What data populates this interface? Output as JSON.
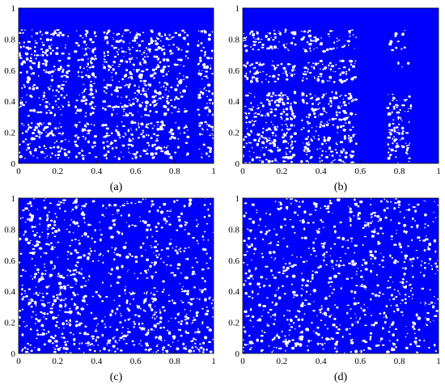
{
  "chart_data": [
    {
      "type": "scatter",
      "caption": "(a)",
      "xlim": [
        0,
        1
      ],
      "ylim": [
        0,
        1
      ],
      "xticks": [
        "0",
        "0.2",
        "0.4",
        "0.6",
        "0.8",
        "1"
      ],
      "yticks": [
        "0",
        "0.2",
        "0.4",
        "0.6",
        "0.8",
        "1"
      ],
      "point_color": "#0000ff",
      "background_color": "#ffffff",
      "grid": false,
      "density_description_values": {
        "dense_columns_x": [
          [
            0.26,
            0.29
          ],
          [
            0.87,
            0.92
          ],
          [
            0.4,
            0.43
          ]
        ],
        "dense_rows_y": [
          [
            0.86,
            1.0
          ],
          [
            0.27,
            0.3
          ],
          [
            0.0,
            0.03
          ]
        ]
      }
    },
    {
      "type": "scatter",
      "caption": "(b)",
      "xlim": [
        0,
        1
      ],
      "ylim": [
        0,
        1
      ],
      "xticks": [
        "0",
        "0.2",
        "0.4",
        "0.6",
        "0.8",
        "1"
      ],
      "yticks": [
        "0",
        "0.2",
        "0.4",
        "0.6",
        "0.8",
        "1"
      ],
      "point_color": "#0000ff",
      "background_color": "#ffffff",
      "grid": false,
      "density_description_values": {
        "dense_columns_x": [
          [
            0.58,
            0.74
          ],
          [
            0.86,
            1.0
          ],
          [
            0.27,
            0.3
          ]
        ],
        "dense_rows_y": [
          [
            0.86,
            1.0
          ],
          [
            0.66,
            0.72
          ],
          [
            0.46,
            0.52
          ]
        ]
      }
    },
    {
      "type": "scatter",
      "caption": "(c)",
      "xlim": [
        0,
        1
      ],
      "ylim": [
        0,
        1
      ],
      "xticks": [
        "0",
        "0.2",
        "0.4",
        "0.6",
        "0.8",
        "1"
      ],
      "yticks": [
        "0",
        "0.2",
        "0.4",
        "0.6",
        "0.8",
        "1"
      ],
      "point_color": "#0000ff",
      "background_color": "#ffffff",
      "grid": false,
      "density_description_values": {
        "dense_columns_x": [
          [
            0.35,
            1.0
          ]
        ],
        "dense_rows_y": [
          [
            0.4,
            1.0
          ]
        ]
      }
    },
    {
      "type": "scatter",
      "caption": "(d)",
      "xlim": [
        0,
        1
      ],
      "ylim": [
        0,
        1
      ],
      "xticks": [
        "0",
        "0.2",
        "0.4",
        "0.6",
        "0.8",
        "1"
      ],
      "yticks": [
        "0",
        "0.2",
        "0.4",
        "0.6",
        "0.8",
        "1"
      ],
      "point_color": "#0000ff",
      "background_color": "#ffffff",
      "grid": false,
      "density_description_values": {
        "dense_columns_x": [],
        "dense_rows_y": []
      }
    }
  ]
}
